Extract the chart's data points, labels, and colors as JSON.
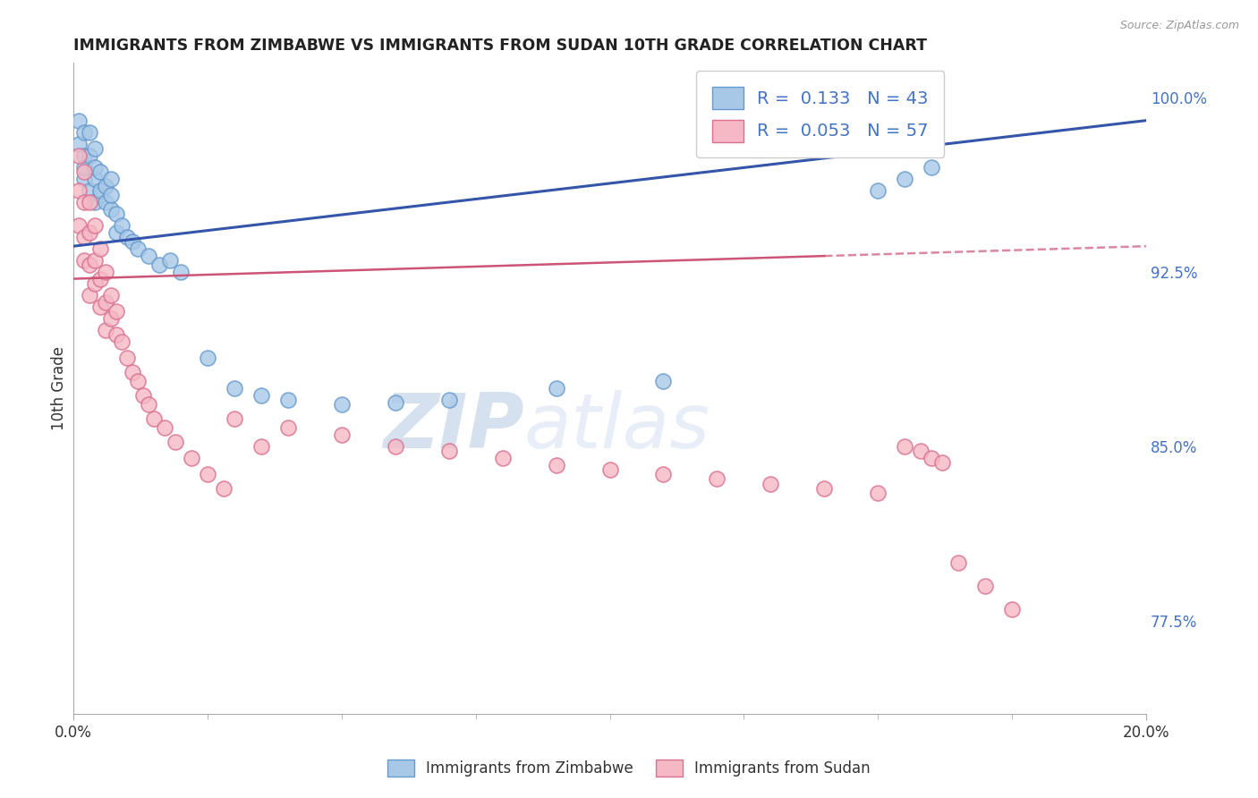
{
  "title": "IMMIGRANTS FROM ZIMBABWE VS IMMIGRANTS FROM SUDAN 10TH GRADE CORRELATION CHART",
  "source": "Source: ZipAtlas.com",
  "ylabel": "10th Grade",
  "x_min": 0.0,
  "x_max": 0.2,
  "y_min": 0.735,
  "y_max": 1.015,
  "y_ticks": [
    0.775,
    0.85,
    0.925,
    1.0
  ],
  "y_tick_labels": [
    "77.5%",
    "85.0%",
    "92.5%",
    "100.0%"
  ],
  "zimbabwe_color": "#A8C8E8",
  "zimbabwe_edge": "#6699CC",
  "sudan_color": "#F5B8C4",
  "sudan_edge": "#D97090",
  "zimbabwe_R": 0.133,
  "zimbabwe_N": 43,
  "sudan_R": 0.053,
  "sudan_N": 57,
  "legend_label_zimbabwe": "Immigrants from Zimbabwe",
  "legend_label_sudan": "Immigrants from Sudan",
  "watermark_zip": "ZIP",
  "watermark_atlas": "atlas",
  "background_color": "#ffffff",
  "grid_color": "#cccccc",
  "title_color": "#222222",
  "blue_line_color": "#3355AA",
  "pink_line_color": "#CC5577",
  "right_axis_color": "#4472c4",
  "zimbabwe_x": [
    0.001,
    0.001,
    0.002,
    0.002,
    0.002,
    0.002,
    0.003,
    0.003,
    0.003,
    0.004,
    0.004,
    0.004,
    0.004,
    0.005,
    0.005,
    0.005,
    0.006,
    0.006,
    0.007,
    0.007,
    0.007,
    0.008,
    0.008,
    0.009,
    0.01,
    0.011,
    0.012,
    0.014,
    0.016,
    0.018,
    0.02,
    0.025,
    0.03,
    0.035,
    0.04,
    0.05,
    0.06,
    0.07,
    0.09,
    0.11,
    0.15,
    0.155,
    0.16
  ],
  "zimbabwe_y": [
    0.98,
    0.99,
    0.975,
    0.985,
    0.965,
    0.97,
    0.96,
    0.975,
    0.985,
    0.955,
    0.965,
    0.97,
    0.978,
    0.958,
    0.968,
    0.96,
    0.955,
    0.962,
    0.952,
    0.958,
    0.965,
    0.95,
    0.942,
    0.945,
    0.94,
    0.938,
    0.935,
    0.932,
    0.928,
    0.93,
    0.925,
    0.888,
    0.875,
    0.872,
    0.87,
    0.868,
    0.869,
    0.87,
    0.875,
    0.878,
    0.96,
    0.965,
    0.97
  ],
  "sudan_x": [
    0.001,
    0.001,
    0.001,
    0.002,
    0.002,
    0.002,
    0.002,
    0.003,
    0.003,
    0.003,
    0.003,
    0.004,
    0.004,
    0.004,
    0.005,
    0.005,
    0.005,
    0.006,
    0.006,
    0.006,
    0.007,
    0.007,
    0.008,
    0.008,
    0.009,
    0.01,
    0.011,
    0.012,
    0.013,
    0.014,
    0.015,
    0.017,
    0.019,
    0.022,
    0.025,
    0.028,
    0.03,
    0.035,
    0.04,
    0.05,
    0.06,
    0.07,
    0.08,
    0.09,
    0.1,
    0.11,
    0.12,
    0.13,
    0.14,
    0.15,
    0.155,
    0.158,
    0.16,
    0.162,
    0.165,
    0.17,
    0.175
  ],
  "sudan_y": [
    0.975,
    0.96,
    0.945,
    0.968,
    0.955,
    0.94,
    0.93,
    0.955,
    0.942,
    0.928,
    0.915,
    0.945,
    0.93,
    0.92,
    0.935,
    0.922,
    0.91,
    0.925,
    0.912,
    0.9,
    0.915,
    0.905,
    0.908,
    0.898,
    0.895,
    0.888,
    0.882,
    0.878,
    0.872,
    0.868,
    0.862,
    0.858,
    0.852,
    0.845,
    0.838,
    0.832,
    0.862,
    0.85,
    0.858,
    0.855,
    0.85,
    0.848,
    0.845,
    0.842,
    0.84,
    0.838,
    0.836,
    0.834,
    0.832,
    0.83,
    0.85,
    0.848,
    0.845,
    0.843,
    0.8,
    0.79,
    0.78
  ]
}
